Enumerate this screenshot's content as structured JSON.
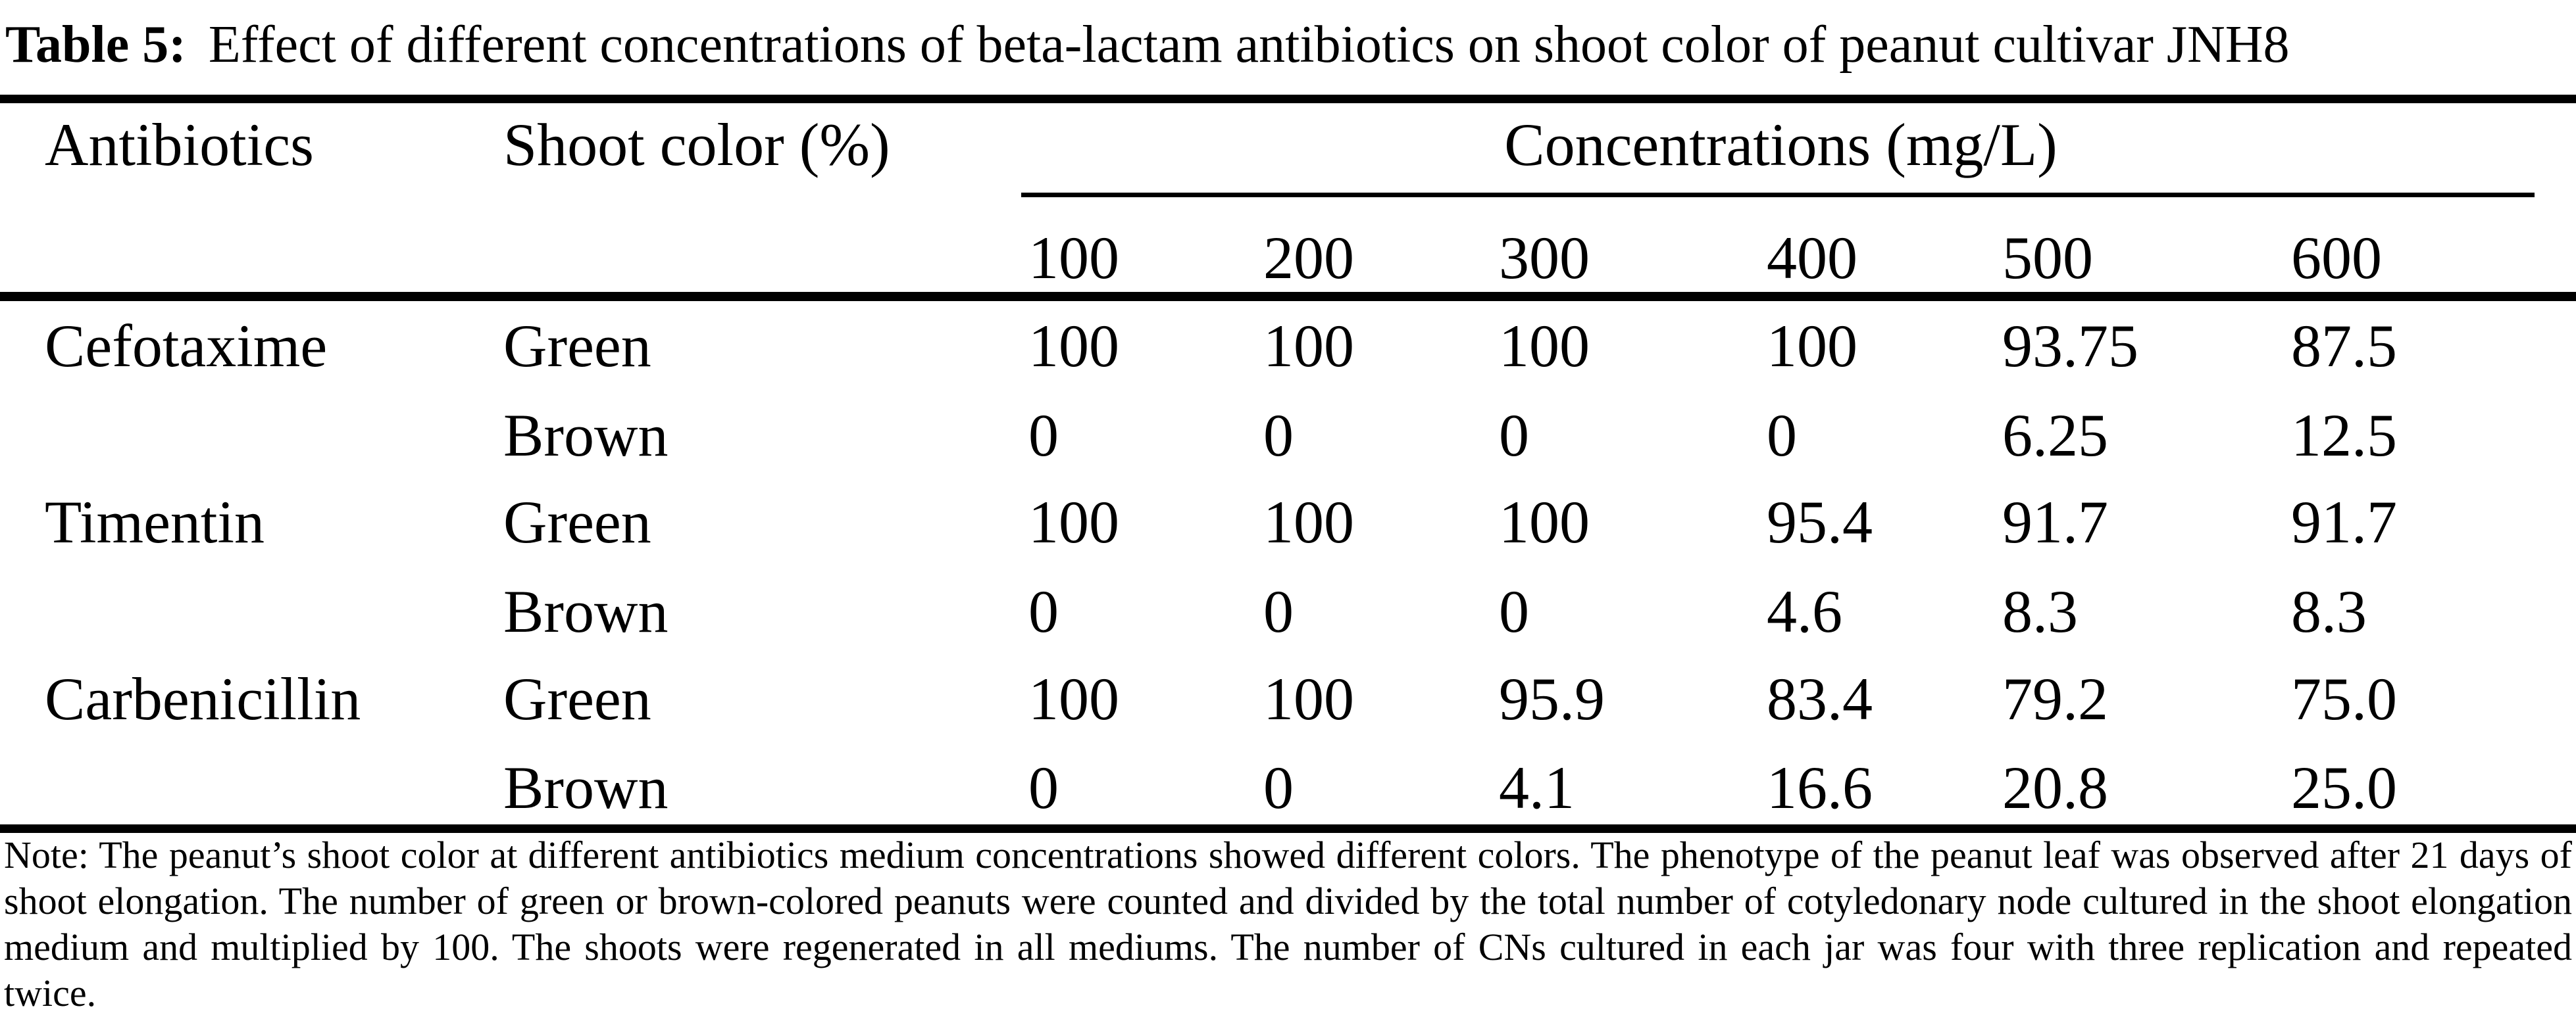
{
  "title": {
    "label": "Table 5:",
    "text": "Effect of different concentrations of beta-lactam antibiotics on shoot color of peanut cultivar JNH8"
  },
  "table": {
    "antibiotics_header": "Antibiotics",
    "shoot_color_header": "Shoot color (%)",
    "concentrations_header": "Concentrations (mg/L)",
    "concentrations": [
      "100",
      "200",
      "300",
      "400",
      "500",
      "600"
    ],
    "rows": [
      {
        "antibiotic": "Cefotaxime",
        "color": "Green",
        "values": [
          "100",
          "100",
          "100",
          "100",
          "93.75",
          "87.5"
        ]
      },
      {
        "antibiotic": "",
        "color": "Brown",
        "values": [
          "0",
          "0",
          "0",
          "0",
          "6.25",
          "12.5"
        ]
      },
      {
        "antibiotic": "Timentin",
        "color": "Green",
        "values": [
          "100",
          "100",
          "100",
          "95.4",
          "91.7",
          "91.7"
        ]
      },
      {
        "antibiotic": "",
        "color": "Brown",
        "values": [
          "0",
          "0",
          "0",
          "4.6",
          "8.3",
          "8.3"
        ]
      },
      {
        "antibiotic": "Carbenicillin",
        "color": "Green",
        "values": [
          "100",
          "100",
          "95.9",
          "83.4",
          "79.2",
          "75.0"
        ]
      },
      {
        "antibiotic": "",
        "color": "Brown",
        "values": [
          "0",
          "0",
          "4.1",
          "16.6",
          "20.8",
          "25.0"
        ]
      }
    ]
  },
  "note": "Note: The peanut’s shoot color at different antibiotics medium concentrations showed different colors. The phenotype of the peanut leaf was observed after 21 days of shoot elongation. The number of green or brown-colored peanuts were counted and divided by the total number of cotyledonary node cultured in the shoot elongation medium and multiplied by 100. The shoots were regenerated in all mediums. The number of CNs cultured in each jar was four with three replication and repeated twice."
}
